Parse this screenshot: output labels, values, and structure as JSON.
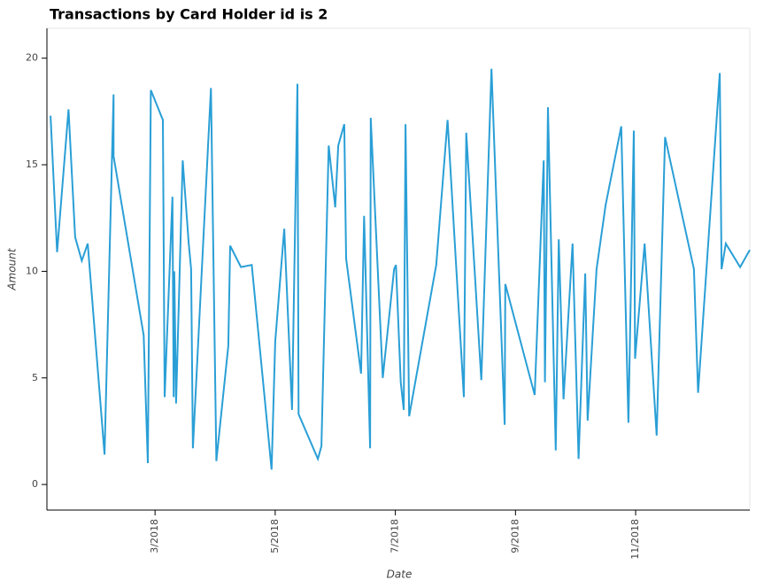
{
  "chart_data": {
    "type": "line",
    "title": "Transactions by Card Holder id is 2",
    "x_label": "Date",
    "y_label": "Amount",
    "x": [
      1.26,
      1.37,
      1.56,
      1.67,
      1.78,
      1.88,
      2.16,
      2.31,
      2.31,
      2.81,
      2.88,
      2.93,
      3.13,
      3.16,
      3.29,
      3.31,
      3.32,
      3.35,
      3.46,
      3.56,
      3.6,
      3.63,
      3.93,
      4.02,
      4.22,
      4.25,
      4.43,
      4.61,
      4.94,
      5.0,
      5.15,
      5.28,
      5.37,
      5.39,
      5.71,
      5.77,
      5.89,
      6.0,
      6.05,
      6.15,
      6.18,
      6.43,
      6.48,
      6.58,
      6.59,
      6.79,
      6.98,
      7.01,
      7.09,
      7.14,
      7.17,
      7.23,
      7.68,
      7.87,
      8.14,
      8.18,
      8.43,
      8.6,
      8.82,
      8.83,
      9.32,
      9.47,
      9.49,
      9.54,
      9.67,
      9.72,
      9.8,
      9.95,
      10.05,
      10.16,
      10.2,
      10.35,
      10.5,
      10.76,
      10.88,
      10.97,
      10.99,
      11.15,
      11.35,
      11.49,
      11.97,
      12.04,
      12.4,
      12.43,
      12.5,
      12.74,
      12.9
    ],
    "series": [
      {
        "name": "Amount",
        "color": "#2a9fd6",
        "values": [
          17.3,
          10.9,
          17.6,
          11.6,
          10.5,
          11.3,
          1.4,
          18.3,
          15.4,
          7.0,
          1.0,
          18.5,
          17.1,
          4.1,
          13.5,
          4.1,
          10.0,
          3.8,
          15.2,
          11.3,
          10.1,
          1.7,
          18.6,
          1.1,
          6.5,
          11.2,
          10.2,
          10.3,
          0.7,
          6.7,
          12.0,
          3.5,
          18.8,
          3.3,
          1.2,
          1.8,
          15.9,
          13.0,
          15.9,
          16.9,
          10.6,
          5.2,
          12.6,
          1.7,
          17.2,
          5.0,
          10.1,
          10.3,
          4.8,
          3.5,
          16.9,
          3.2,
          10.3,
          17.1,
          4.1,
          16.5,
          4.9,
          19.5,
          2.8,
          9.4,
          4.2,
          15.2,
          4.8,
          17.7,
          1.6,
          11.5,
          4.0,
          11.3,
          1.2,
          9.9,
          3.0,
          10.1,
          13.1,
          16.8,
          2.9,
          16.6,
          5.9,
          11.3,
          2.3,
          16.3,
          10.1,
          4.3,
          19.3,
          10.1,
          11.3,
          10.2,
          11.0
        ]
      }
    ],
    "xlim": [
      1.2,
      12.9
    ],
    "xticks": [
      {
        "value": 3,
        "label": "3/2018"
      },
      {
        "value": 5,
        "label": "5/2018"
      },
      {
        "value": 7,
        "label": "7/2018"
      },
      {
        "value": 9,
        "label": "9/2018"
      },
      {
        "value": 11,
        "label": "11/2018"
      }
    ],
    "ylim": [
      -1.2,
      21.4
    ],
    "yticks": [
      0,
      5,
      10,
      15,
      20
    ]
  }
}
